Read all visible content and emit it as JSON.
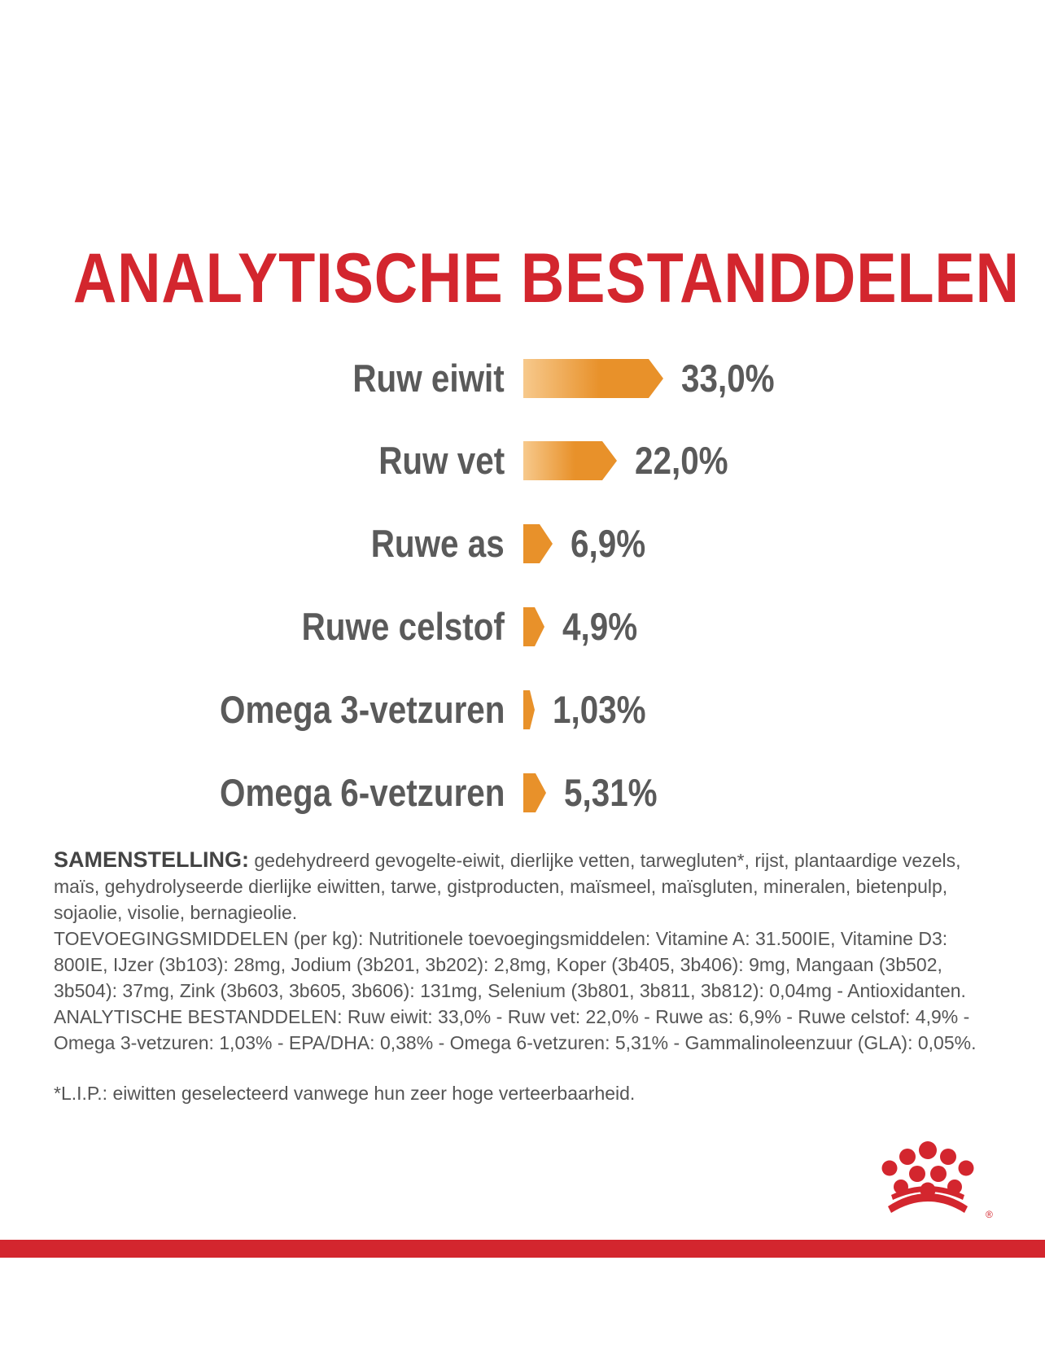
{
  "title": "ANALYTISCHE BESTANDDELEN",
  "colors": {
    "brand_red": "#d3262e",
    "bar_orange": "#e8912a",
    "bar_orange_light": "#f7c98c",
    "text_gray": "#5a5a5a"
  },
  "analysis": [
    {
      "label": "Ruw eiwit",
      "value": "33,0%",
      "amount": 33.0
    },
    {
      "label": "Ruw vet",
      "value": "22,0%",
      "amount": 22.0
    },
    {
      "label": "Ruwe as",
      "value": "6,9%",
      "amount": 6.9
    },
    {
      "label": "Ruwe celstof",
      "value": "4,9%",
      "amount": 4.9
    },
    {
      "label": "Omega 3-vetzuren",
      "value": "1,03%",
      "amount": 1.03
    },
    {
      "label": "Omega 6-vetzuren",
      "value": "5,31%",
      "amount": 5.31
    }
  ],
  "composition": {
    "heading": "SAMENSTELLING:",
    "ingredients": " gedehydreerd gevogelte-eiwit, dierlijke vetten, tarwegluten*, rijst, plantaardige vezels, maïs, gehydrolyseerde dierlijke eiwitten, tarwe, gistproducten, maïsmeel, maïsgluten, mineralen, bietenpulp, sojaolie, visolie, bernagieolie.",
    "additives": "TOEVOEGINGSMIDDELEN (per kg): Nutritionele toevoegingsmiddelen: Vitamine A: 31.500IE, Vitamine D3: 800IE, IJzer (3b103): 28mg, Jodium (3b201, 3b202): 2,8mg, Koper (3b405, 3b406): 9mg, Mangaan (3b502, 3b504): 37mg, Zink (3b603, 3b605, 3b606): 131mg, Selenium (3b801, 3b811, 3b812): 0,04mg - Antioxidanten.",
    "analytical": "ANALYTISCHE BESTANDDELEN: Ruw eiwit: 33,0% - Ruw vet: 22,0% - Ruwe as: 6,9% - Ruwe celstof: 4,9% - Omega 3-vetzuren: 1,03% - EPA/DHA: 0,38% - Omega 6-vetzuren: 5,31% - Gammalinoleenzuur (GLA): 0,05%.",
    "footnote": "*L.I.P.: eiwitten geselecteerd vanwege hun zeer hoge verteerbaarheid."
  },
  "logo": {
    "icon": "royal-canin-crown-icon",
    "registered_mark": "®"
  }
}
